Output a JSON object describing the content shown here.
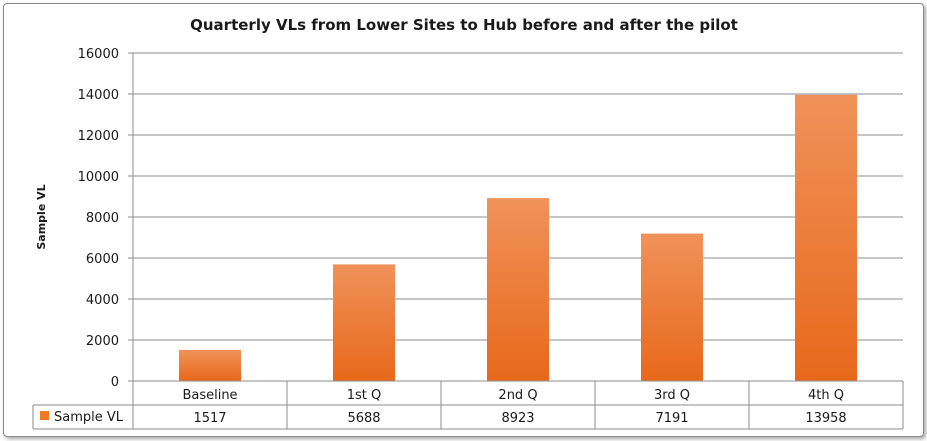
{
  "chart_data": {
    "type": "bar",
    "title": "Quarterly VLs from Lower Sites to Hub before and after the pilot",
    "xlabel": "",
    "ylabel": "Sample VL",
    "ylim": [
      0,
      16000
    ],
    "y_ticks": [
      0,
      2000,
      4000,
      6000,
      8000,
      10000,
      12000,
      14000,
      16000
    ],
    "grid": true,
    "legend_placement": "data-table",
    "categories": [
      "Baseline",
      "1st Q",
      "2nd Q",
      "3rd Q",
      "4th Q"
    ],
    "series": [
      {
        "name": "Sample VL",
        "values": [
          1517,
          5688,
          8923,
          7191,
          13958
        ],
        "color": "#f07a22"
      }
    ]
  }
}
